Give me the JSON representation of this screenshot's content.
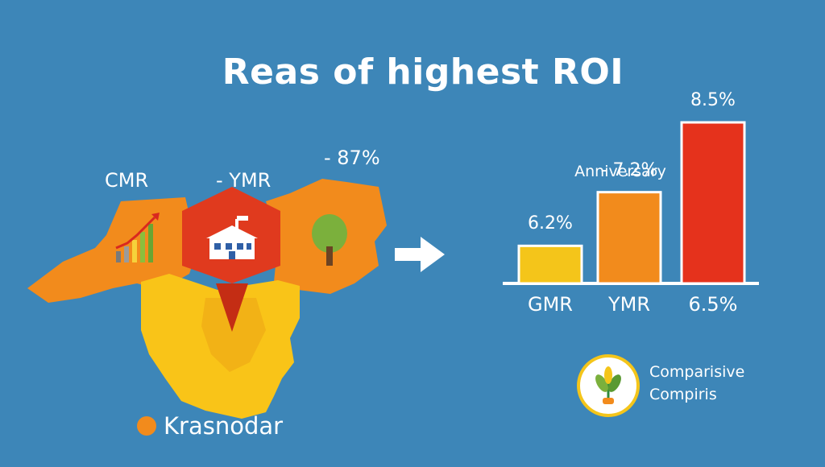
{
  "title": "Reas of highest ROI",
  "map": {
    "labels": {
      "cmr": "CMR",
      "ymr": "- YMR",
      "east": "- 87%"
    },
    "legend": "Krasnodar",
    "colors": {
      "orange": "#f28b1c",
      "yellow": "#f9c418",
      "red": "#e03a1e"
    }
  },
  "chart_data": {
    "type": "bar",
    "categories": [
      "GMR",
      "YMR",
      "6.5%"
    ],
    "values": [
      6.2,
      7.2,
      8.5
    ],
    "value_labels": [
      "6.2%",
      "- 7.2%",
      "8.5%"
    ],
    "annotation": "Anniversary",
    "colors": [
      "#f4c51a",
      "#f28b1c",
      "#e5321c"
    ],
    "ylim": [
      5.5,
      8.5
    ],
    "grid": false
  },
  "badge": {
    "line1": "Comparisive",
    "line2": "Compiris",
    "icon": "wheat-plant-icon"
  },
  "icons": {
    "arrow": "right-arrow-icon",
    "growth": "growth-chart-icon",
    "factory": "factory-icon",
    "tree": "tree-icon"
  }
}
